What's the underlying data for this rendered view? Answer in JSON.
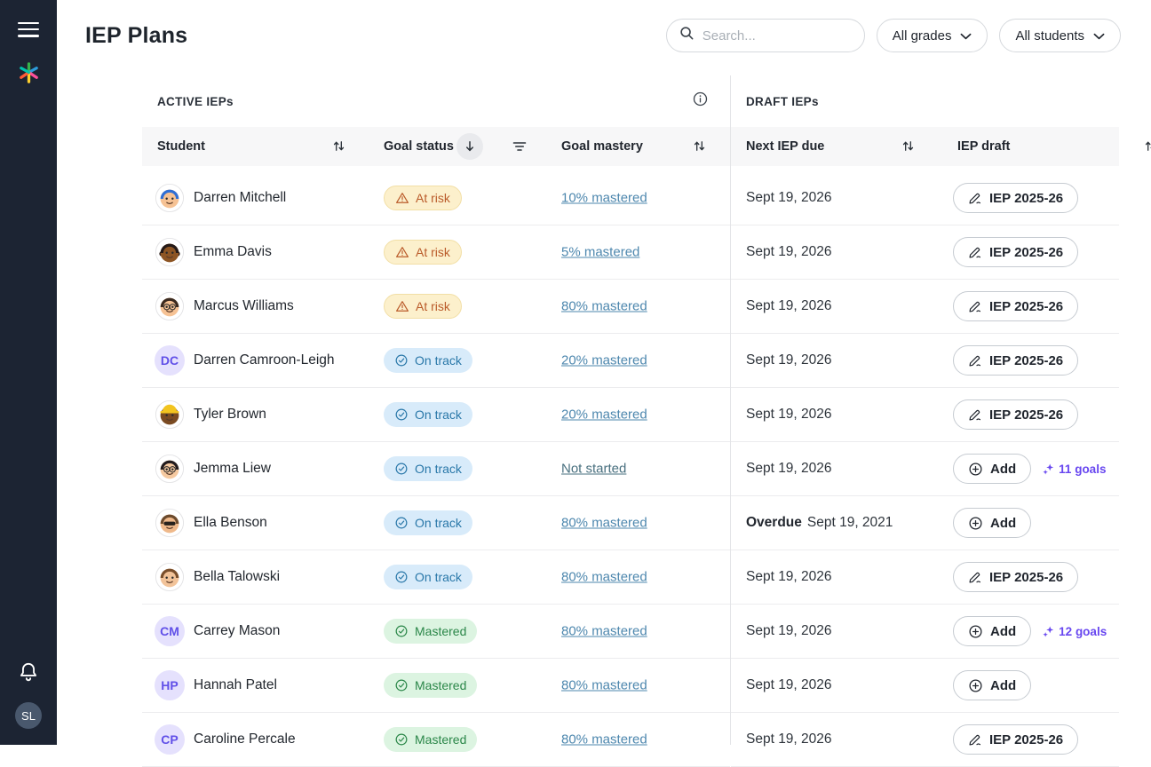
{
  "sidebar": {
    "avatar_initials": "SL"
  },
  "header": {
    "title": "IEP Plans",
    "search_placeholder": "Search...",
    "filters": [
      {
        "label": "All grades"
      },
      {
        "label": "All students"
      }
    ]
  },
  "active_section": {
    "title": "ACTIVE IEPs",
    "columns": {
      "student": "Student",
      "goal_status": "Goal status",
      "goal_mastery": "Goal mastery"
    }
  },
  "draft_section": {
    "title": "DRAFT IEPs",
    "columns": {
      "next_iep_due": "Next IEP due",
      "iep_draft": "IEP draft"
    }
  },
  "buttons": {
    "add_label": "Add",
    "iep_label": "IEP 2025-26"
  },
  "status_labels": {
    "at_risk": "At risk",
    "on_track": "On track",
    "mastered": "Mastered"
  },
  "icons": [
    "hamburger-icon",
    "logo-asterisk-icon",
    "bell-icon",
    "search-icon",
    "chevron-down-icon",
    "info-icon",
    "sort-updown-icon",
    "sort-down-icon",
    "filter-icon",
    "warning-triangle-icon",
    "check-circle-icon",
    "edit-pencil-icon",
    "plus-circle-icon",
    "sparkle-goals-icon"
  ],
  "colors": {
    "sidebar_bg": "#1C2433",
    "header_strip_bg": "#F7F7F8",
    "accent_link": "#4D87AE",
    "goals_purple": "#6847F0",
    "at_risk_bg": "#FCF0CC",
    "at_risk_fg": "#BA5B2A",
    "at_risk_border": "#F2DFA6",
    "on_track_bg": "#D8EBFA",
    "on_track_fg": "#2A78A9",
    "mastered_bg": "#DCF4E1",
    "mastered_fg": "#2B8749",
    "initials_bg": "#E5E1FD",
    "initials_fg": "#6150E8"
  },
  "rows": [
    {
      "name": "Darren Mitchell",
      "avatar": {
        "kind": "face",
        "skin": "#F6C294",
        "hair": "#2F6FD6"
      },
      "status": "at_risk",
      "mastery": "10% mastered",
      "due_prefix": "",
      "due": "Sept 19, 2026",
      "draft": "iep",
      "goals": null
    },
    {
      "name": "Emma Davis",
      "avatar": {
        "kind": "face",
        "skin": "#8D5524",
        "hair": "#241A18",
        "braids": true
      },
      "status": "at_risk",
      "mastery": "5% mastered",
      "due_prefix": "",
      "due": "Sept 19, 2026",
      "draft": "iep",
      "goals": null
    },
    {
      "name": "Marcus Williams",
      "avatar": {
        "kind": "face",
        "skin": "#F6C294",
        "hair": "#3A2A20",
        "glasses": true
      },
      "status": "at_risk",
      "mastery": "80% mastered",
      "due_prefix": "",
      "due": "Sept 19, 2026",
      "draft": "iep",
      "goals": null
    },
    {
      "name": "Darren Camroon-Leigh",
      "avatar": {
        "kind": "initials",
        "text": "DC"
      },
      "status": "on_track",
      "mastery": "20% mastered",
      "due_prefix": "",
      "due": "Sept 19, 2026",
      "draft": "iep",
      "goals": null
    },
    {
      "name": "Tyler Brown",
      "avatar": {
        "kind": "face",
        "skin": "#7A4A21",
        "hat": "#F2C41F"
      },
      "status": "on_track",
      "mastery": "20% mastered",
      "due_prefix": "",
      "due": "Sept 19, 2026",
      "draft": "iep",
      "goals": null
    },
    {
      "name": "Jemma Liew",
      "avatar": {
        "kind": "face",
        "skin": "#F5C9A0",
        "hair": "#221C1E",
        "glasses": true
      },
      "status": "on_track",
      "mastery": "Not started",
      "due_prefix": "",
      "due": "Sept 19, 2026",
      "draft": "add",
      "goals": "11 goals"
    },
    {
      "name": "Ella Benson",
      "avatar": {
        "kind": "face",
        "skin": "#EFB98B",
        "hair": "#6B4A2D",
        "sunglasses": true
      },
      "status": "on_track",
      "mastery": "80% mastered",
      "due_prefix": "Overdue",
      "due": "Sept 19, 2021",
      "draft": "add",
      "goals": null
    },
    {
      "name": "Bella Talowski",
      "avatar": {
        "kind": "face",
        "skin": "#F2C399",
        "hair": "#7A4F2C"
      },
      "status": "on_track",
      "mastery": "80% mastered",
      "due_prefix": "",
      "due": "Sept 19, 2026",
      "draft": "iep",
      "goals": null
    },
    {
      "name": "Carrey Mason",
      "avatar": {
        "kind": "initials",
        "text": "CM"
      },
      "status": "mastered",
      "mastery": "80% mastered",
      "due_prefix": "",
      "due": "Sept 19, 2026",
      "draft": "add",
      "goals": "12 goals"
    },
    {
      "name": "Hannah Patel",
      "avatar": {
        "kind": "initials",
        "text": "HP"
      },
      "status": "mastered",
      "mastery": "80% mastered",
      "due_prefix": "",
      "due": "Sept 19, 2026",
      "draft": "add",
      "goals": null
    },
    {
      "name": "Caroline Percale",
      "avatar": {
        "kind": "initials",
        "text": "CP"
      },
      "status": "mastered",
      "mastery": "80% mastered",
      "due_prefix": "",
      "due": "Sept 19, 2026",
      "draft": "iep",
      "goals": null
    }
  ]
}
